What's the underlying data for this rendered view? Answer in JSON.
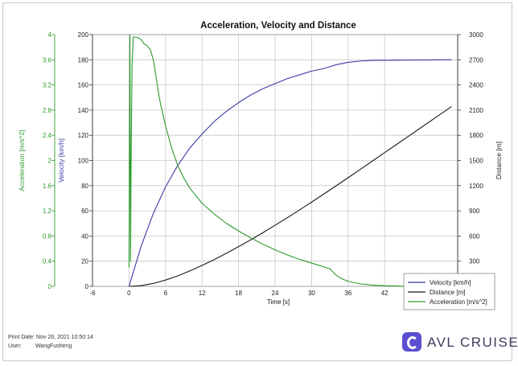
{
  "footer": {
    "print_date_label": "Print Date:",
    "print_date_value": "Nov 26, 2021 10:50:14",
    "user_label": "User:",
    "user_value": "WangFusheng",
    "brand": "AVL CRUISE"
  },
  "colors": {
    "velocity": "#3a3aa8",
    "distance": "#1a1a1a",
    "acceleration": "#2c9a2c",
    "grid": "#c8c8c8"
  },
  "chart_data": {
    "type": "line",
    "title": "Acceleration, Velocity and Distance",
    "xlabel": "Time [s]",
    "xlim": [
      -6,
      54
    ],
    "xticks": [
      -6,
      0,
      6,
      12,
      18,
      24,
      30,
      36,
      42
    ],
    "grid": true,
    "legend_position": "bottom-right",
    "axes": [
      {
        "id": "acc",
        "label": "Acceleration [m/s^2]",
        "side": "left-outer",
        "range": [
          0,
          4
        ],
        "ticks": [
          "0",
          "0.4",
          "0.8",
          "1.2",
          "1.6",
          "2",
          "2.4",
          "2.8",
          "3.2",
          "3.6",
          "4"
        ]
      },
      {
        "id": "vel",
        "label": "Velocity [km/h]",
        "side": "left-inner",
        "range": [
          0,
          200
        ],
        "ticks": [
          "0",
          "20",
          "40",
          "60",
          "80",
          "100",
          "120",
          "140",
          "160",
          "180",
          "200"
        ]
      },
      {
        "id": "dist",
        "label": "Distance [m]",
        "side": "right",
        "range": [
          0,
          3000
        ],
        "ticks": [
          "0",
          "300",
          "600",
          "900",
          "1200",
          "1500",
          "1800",
          "2100",
          "2400",
          "2700",
          "3000"
        ]
      }
    ],
    "series": [
      {
        "name": "Velocity [km/h]",
        "axis": "vel",
        "x": [
          0,
          2,
          4,
          6,
          8,
          10,
          12,
          14,
          16,
          18,
          20,
          22,
          24,
          26,
          28,
          30,
          32,
          34,
          36,
          38,
          40,
          44,
          48,
          53
        ],
        "y": [
          0,
          32,
          58,
          79,
          96,
          110,
          121,
          131,
          139,
          146,
          152,
          157,
          161,
          165,
          168,
          171,
          173,
          176,
          178,
          179,
          179.5,
          179.7,
          179.8,
          180
        ]
      },
      {
        "name": "Distance [m]",
        "axis": "dist",
        "x": [
          0,
          2,
          4,
          6,
          8,
          10,
          12,
          14,
          16,
          18,
          20,
          22,
          24,
          26,
          28,
          30,
          32,
          34,
          36,
          38,
          40,
          42,
          44,
          46,
          48,
          50,
          53
        ],
        "y": [
          0,
          9,
          35,
          75,
          125,
          184,
          249,
          319,
          394,
          473,
          555,
          640,
          728,
          818,
          910,
          1004,
          1100,
          1197,
          1295,
          1394,
          1494,
          1594,
          1693,
          1793,
          1893,
          1993,
          2143
        ]
      },
      {
        "name": "Acceleration [m/s^2]",
        "axis": "acc",
        "x": [
          0,
          0.15,
          0.25,
          0.35,
          0.5,
          0.7,
          1.0,
          1.5,
          2.0,
          2.5,
          3.0,
          3.5,
          4.0,
          5.0,
          6.0,
          7.0,
          8.0,
          9.0,
          10.0,
          12.0,
          14.0,
          16.0,
          18.0,
          20.0,
          22.0,
          24.0,
          26.0,
          28.0,
          30.0,
          32.0,
          33.0,
          34.0,
          35.0,
          36.0,
          38.0,
          40.0,
          42.0,
          44.0,
          46.0
        ],
        "y": [
          0.3,
          4.0,
          0.4,
          2.0,
          3.5,
          3.96,
          3.96,
          3.95,
          3.92,
          3.85,
          3.82,
          3.76,
          3.6,
          2.98,
          2.55,
          2.2,
          1.92,
          1.72,
          1.56,
          1.32,
          1.15,
          1.0,
          0.88,
          0.77,
          0.67,
          0.58,
          0.5,
          0.43,
          0.37,
          0.31,
          0.28,
          0.18,
          0.12,
          0.08,
          0.04,
          0.02,
          0.01,
          0.005,
          0.0
        ]
      }
    ]
  }
}
